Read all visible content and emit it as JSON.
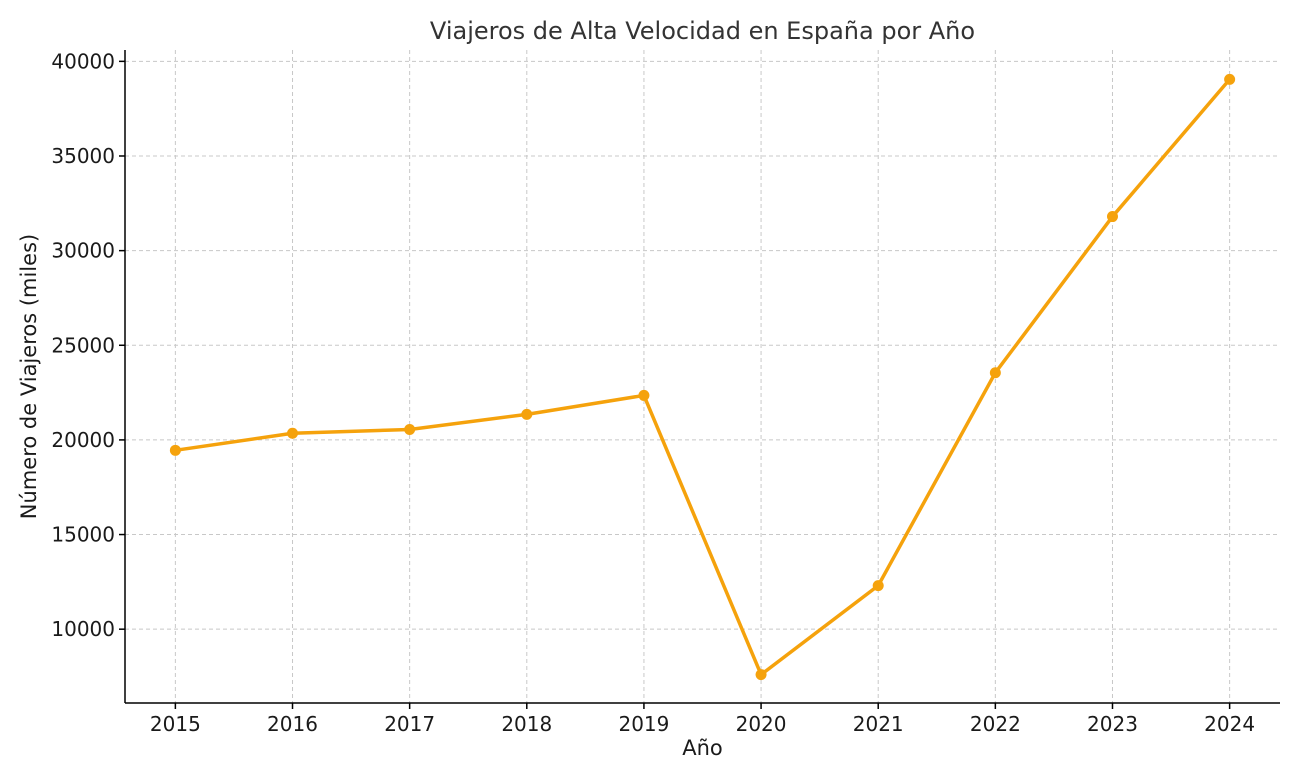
{
  "chart_data": {
    "type": "line",
    "title": "Viajeros de Alta Velocidad en España por Año",
    "xlabel": "Año",
    "ylabel": "Número de Viajeros (miles)",
    "x": [
      2015,
      2016,
      2017,
      2018,
      2019,
      2020,
      2021,
      2022,
      2023,
      2024
    ],
    "x_tick_labels": [
      "2015",
      "2016",
      "2017",
      "2018",
      "2019",
      "2020",
      "2021",
      "2022",
      "2023",
      "2024"
    ],
    "series": [
      {
        "values": [
          19450,
          20350,
          20550,
          21350,
          22350,
          7600,
          12300,
          23550,
          31800,
          39050
        ],
        "color": "#f5a20c"
      }
    ],
    "y_ticks": [
      10000,
      15000,
      20000,
      25000,
      30000,
      35000,
      40000
    ],
    "y_tick_labels": [
      "10000",
      "15000",
      "20000",
      "25000",
      "30000",
      "35000",
      "40000"
    ],
    "xlim": [
      2014.57,
      2024.43
    ],
    "ylim": [
      6100,
      40600
    ],
    "grid": true,
    "legend": "none"
  }
}
